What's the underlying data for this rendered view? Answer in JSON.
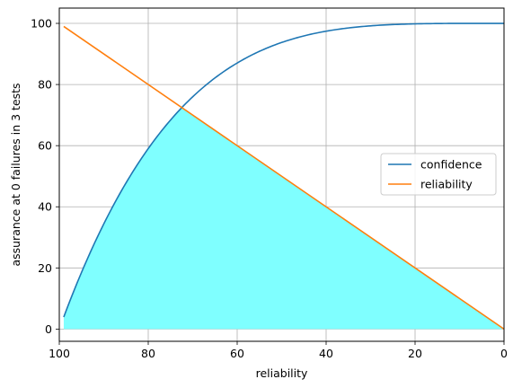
{
  "chart_data": {
    "type": "line",
    "xlabel": "reliability",
    "ylabel": "assurance at 0 failures in 3 tests",
    "xlim": [
      100,
      0
    ],
    "ylim": [
      -4,
      105
    ],
    "x_inverted": true,
    "grid": true,
    "legend_placement": "center-right",
    "xticks": [
      100,
      80,
      60,
      40,
      20,
      0
    ],
    "yticks": [
      0,
      20,
      40,
      60,
      80,
      100
    ],
    "series": [
      {
        "name": "confidence",
        "color": "#1f77b4",
        "formula": "100*(1-(x/100)^4)",
        "x": [
          99,
          95,
          90,
          85,
          80,
          75,
          70,
          65,
          60,
          55,
          50,
          45,
          40,
          35,
          30,
          25,
          20,
          15,
          10,
          5,
          0
        ],
        "y": [
          3.9,
          18.5,
          34.4,
          47.8,
          59.0,
          68.4,
          76.0,
          82.1,
          87.0,
          90.8,
          93.8,
          95.9,
          97.4,
          98.5,
          99.2,
          99.6,
          99.8,
          99.9,
          100,
          100,
          100
        ]
      },
      {
        "name": "reliability",
        "color": "#ff7f0e",
        "x": [
          99,
          0
        ],
        "y": [
          99,
          0
        ]
      }
    ],
    "fill": {
      "color": "#7fffff",
      "description_region": "under min(confidence, reliability)"
    }
  }
}
